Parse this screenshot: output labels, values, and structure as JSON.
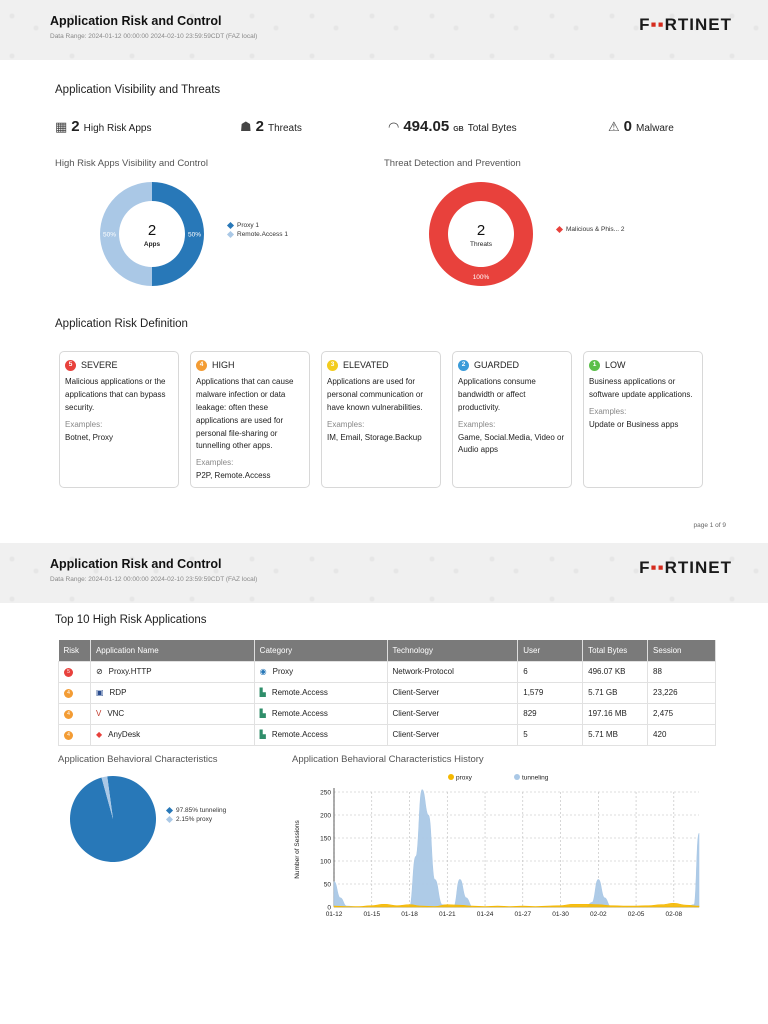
{
  "pages": [
    {
      "title": "Application Risk and Control",
      "range": "Data Range: 2024-01-12 00:00:00 2024-02-10 23:59:59CDT (FAZ local)"
    },
    {
      "title": "Application Risk and Control",
      "range": "Data Range: 2024-01-12 00:00:00 2024-02-10 23:59:59CDT (FAZ local)"
    }
  ],
  "logo": {
    "text_a": "F",
    "text_b": "RTINET",
    "mark": "▪▪"
  },
  "visibility": {
    "title": "Application Visibility and Threats",
    "kpis": [
      {
        "icon": "apps-icon",
        "glyph": "▦",
        "value": "2",
        "unit": "",
        "label": "High Risk Apps"
      },
      {
        "icon": "threat-icon",
        "glyph": "☗",
        "value": "2",
        "unit": "",
        "label": "Threats"
      },
      {
        "icon": "speedometer-icon",
        "glyph": "◠",
        "value": "494.05",
        "unit": "GB",
        "label": "Total Bytes"
      },
      {
        "icon": "malware-icon",
        "glyph": "⚠",
        "value": "0",
        "unit": "",
        "label": "Malware"
      }
    ],
    "apps_chart_title": "High Risk Apps Visibility and Control",
    "threats_chart_title": "Threat Detection and Prevention"
  },
  "risk_definition": {
    "title": "Application Risk Definition",
    "examples_label": "Examples:",
    "cards": [
      {
        "num": "5",
        "color": "#e8413c",
        "name": "SEVERE",
        "desc": "Malicious applications or the applications that can bypass security.",
        "examples": "Botnet, Proxy"
      },
      {
        "num": "4",
        "color": "#f39c34",
        "name": "HIGH",
        "desc": "Applications that can cause malware infection or data leakage: often these applications are used for personal file-sharing or tunnelling other apps.",
        "examples": "P2P, Remote.Access"
      },
      {
        "num": "3",
        "color": "#f3cc1e",
        "name": "ELEVATED",
        "desc": "Applications are used for personal communication or have known vulnerabilities.",
        "examples": "IM, Email, Storage.Backup"
      },
      {
        "num": "2",
        "color": "#3a9bd9",
        "name": "GUARDED",
        "desc": "Applications consume bandwidth or affect productivity.",
        "examples": "Game, Social.Media, Video or Audio apps"
      },
      {
        "num": "1",
        "color": "#5bbf4a",
        "name": "LOW",
        "desc": "Business applications or software update applications.",
        "examples": "Update or Business apps"
      }
    ]
  },
  "page_number": "page 1 of 9",
  "top10": {
    "title": "Top 10 High Risk Applications",
    "headers": [
      "Risk",
      "Application Name",
      "Category",
      "Technology",
      "User",
      "Total Bytes",
      "Session"
    ],
    "rows": [
      {
        "risk": "5",
        "risk_color": "#e8413c",
        "app": "Proxy.HTTP",
        "app_icon": "⊘",
        "category": "Proxy",
        "tech": "Network-Protocol",
        "user": "6",
        "bytes": "496.07 KB",
        "session": "88"
      },
      {
        "risk": "4",
        "risk_color": "#f39c34",
        "app": "RDP",
        "app_icon": "▣",
        "category": "Remote.Access",
        "tech": "Client-Server",
        "user": "1,579",
        "bytes": "5.71 GB",
        "session": "23,226"
      },
      {
        "risk": "4",
        "risk_color": "#f39c34",
        "app": "VNC",
        "app_icon": "V",
        "category": "Remote.Access",
        "tech": "Client-Server",
        "user": "829",
        "bytes": "197.16 MB",
        "session": "2,475"
      },
      {
        "risk": "4",
        "risk_color": "#f39c34",
        "app": "AnyDesk",
        "app_icon": "◆",
        "category": "Remote.Access",
        "tech": "Client-Server",
        "user": "5",
        "bytes": "5.71 MB",
        "session": "420"
      }
    ]
  },
  "behavior": {
    "title": "Application Behavioral Characteristics",
    "history_title": "Application Behavioral Characteristics History"
  },
  "chart_data": [
    {
      "type": "pie",
      "subtype": "donut",
      "center_value": "2",
      "center_label": "Apps",
      "categories": [
        "Proxy",
        "Remote.Access"
      ],
      "values": [
        1,
        1
      ],
      "slice_labels": [
        "50%",
        "50%"
      ],
      "legend": [
        "Proxy 1",
        "Remote.Access 1"
      ],
      "colors": [
        "#2878b8",
        "#aac8e6"
      ],
      "legend_position": "right"
    },
    {
      "type": "pie",
      "subtype": "donut",
      "center_value": "2",
      "center_label": "Threats",
      "categories": [
        "Malicious & Phis..."
      ],
      "values": [
        2
      ],
      "slice_labels": [
        "100%"
      ],
      "legend": [
        "Malicious & Phis... 2"
      ],
      "colors": [
        "#e8413c"
      ],
      "legend_position": "right"
    },
    {
      "type": "pie",
      "categories": [
        "tunneling",
        "proxy"
      ],
      "values": [
        97.85,
        2.15
      ],
      "legend": [
        "97.85% tunneling",
        "2.15% proxy"
      ],
      "colors": [
        "#2878b8",
        "#aac8e6"
      ],
      "legend_position": "right"
    },
    {
      "type": "area",
      "ylabel": "Number of Sessions",
      "ylim": [
        0,
        250
      ],
      "yticks": [
        0,
        50,
        100,
        150,
        200,
        250
      ],
      "xticks": [
        "01-12",
        "01-15",
        "01-18",
        "01-21",
        "01-24",
        "01-27",
        "01-30",
        "02-02",
        "02-05",
        "02-08"
      ],
      "x_range": [
        0,
        29
      ],
      "legend_position": "top",
      "series": [
        {
          "name": "proxy",
          "color": "#f5b800",
          "points": [
            [
              0,
              2
            ],
            [
              1,
              1
            ],
            [
              2,
              1
            ],
            [
              3,
              3
            ],
            [
              4,
              6
            ],
            [
              5,
              3
            ],
            [
              6,
              5
            ],
            [
              7,
              2
            ],
            [
              8,
              1
            ],
            [
              9,
              5
            ],
            [
              10,
              4
            ],
            [
              11,
              2
            ],
            [
              12,
              1
            ],
            [
              13,
              2
            ],
            [
              14,
              1
            ],
            [
              15,
              2
            ],
            [
              16,
              1
            ],
            [
              17,
              2
            ],
            [
              18,
              3
            ],
            [
              19,
              6
            ],
            [
              20,
              6
            ],
            [
              21,
              5
            ],
            [
              22,
              3
            ],
            [
              23,
              2
            ],
            [
              24,
              2
            ],
            [
              25,
              3
            ],
            [
              26,
              5
            ],
            [
              27,
              8
            ],
            [
              28,
              4
            ],
            [
              29,
              2
            ]
          ]
        },
        {
          "name": "tunneling",
          "color": "#aac8e6",
          "points": [
            [
              0,
              55
            ],
            [
              0.5,
              20
            ],
            [
              1,
              2
            ],
            [
              2,
              0
            ],
            [
              3,
              0
            ],
            [
              4,
              0
            ],
            [
              5,
              0
            ],
            [
              6,
              0
            ],
            [
              6.5,
              110
            ],
            [
              7,
              255
            ],
            [
              7.5,
              200
            ],
            [
              8,
              60
            ],
            [
              8.6,
              5
            ],
            [
              9.5,
              0
            ],
            [
              10,
              60
            ],
            [
              10.5,
              20
            ],
            [
              11,
              0
            ],
            [
              12,
              0
            ],
            [
              13,
              0
            ],
            [
              14,
              0
            ],
            [
              15,
              0
            ],
            [
              16,
              0
            ],
            [
              17,
              0
            ],
            [
              18,
              0
            ],
            [
              19,
              0
            ],
            [
              20,
              0
            ],
            [
              20.5,
              10
            ],
            [
              21,
              60
            ],
            [
              21.5,
              20
            ],
            [
              22,
              0
            ],
            [
              23,
              0
            ],
            [
              24,
              0
            ],
            [
              25,
              0
            ],
            [
              26,
              0
            ],
            [
              27,
              0
            ],
            [
              28,
              0
            ],
            [
              28.6,
              5
            ],
            [
              29,
              160
            ]
          ]
        }
      ]
    }
  ]
}
